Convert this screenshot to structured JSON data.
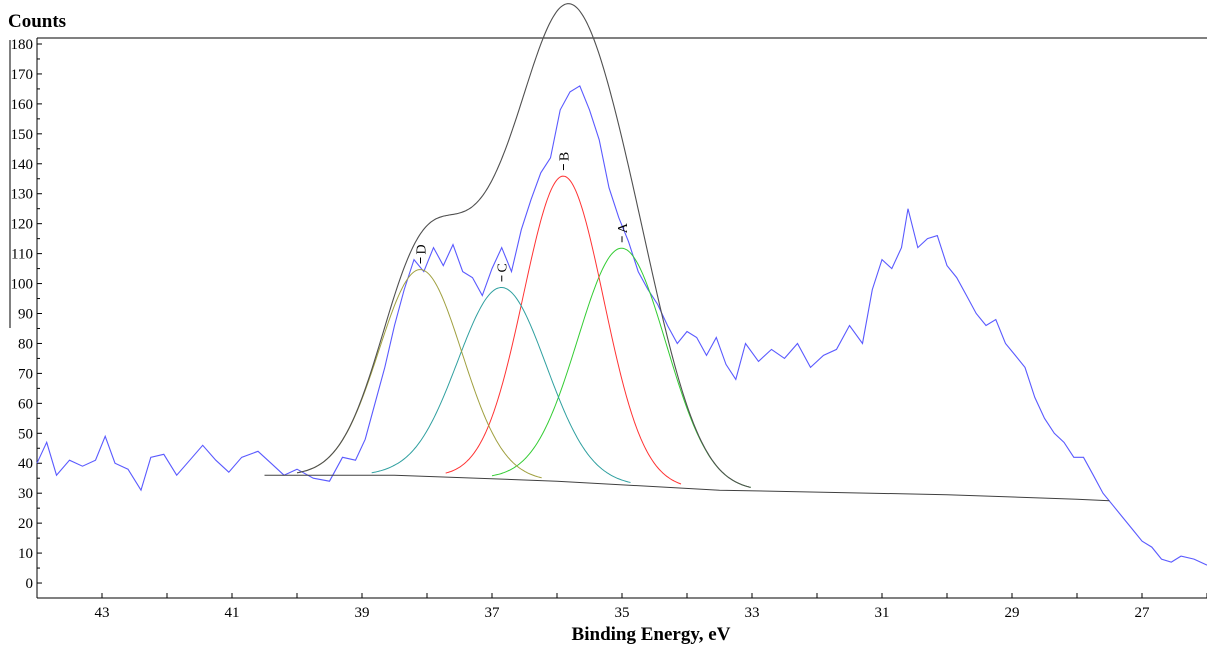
{
  "chart_data": {
    "type": "line",
    "ylabel": "Counts",
    "xlabel": "Binding Energy, eV",
    "xlim": [
      44,
      26
    ],
    "ylim": [
      -5,
      182
    ],
    "x_reversed": true,
    "grid": false,
    "x_ticks": [
      43,
      41,
      39,
      37,
      35,
      33,
      31,
      29,
      27
    ],
    "y_ticks": [
      0,
      10,
      20,
      30,
      40,
      50,
      60,
      70,
      80,
      90,
      100,
      110,
      120,
      130,
      140,
      150,
      160,
      170,
      180
    ],
    "raw_spectrum": {
      "color": "#5a5aff",
      "points": [
        [
          44.0,
          40
        ],
        [
          43.85,
          47
        ],
        [
          43.7,
          36
        ],
        [
          43.5,
          41
        ],
        [
          43.3,
          39
        ],
        [
          43.1,
          41
        ],
        [
          42.95,
          49
        ],
        [
          42.8,
          40
        ],
        [
          42.6,
          38
        ],
        [
          42.4,
          31
        ],
        [
          42.25,
          42
        ],
        [
          42.05,
          43
        ],
        [
          41.85,
          36
        ],
        [
          41.65,
          41
        ],
        [
          41.45,
          46
        ],
        [
          41.25,
          41
        ],
        [
          41.05,
          37
        ],
        [
          40.85,
          42
        ],
        [
          40.6,
          44
        ],
        [
          40.4,
          40
        ],
        [
          40.2,
          36
        ],
        [
          40.0,
          38
        ],
        [
          39.75,
          35
        ],
        [
          39.5,
          34
        ],
        [
          39.3,
          42
        ],
        [
          39.1,
          41
        ],
        [
          38.95,
          48
        ],
        [
          38.8,
          60
        ],
        [
          38.65,
          72
        ],
        [
          38.5,
          86
        ],
        [
          38.35,
          98
        ],
        [
          38.2,
          108
        ],
        [
          38.05,
          104
        ],
        [
          37.9,
          112
        ],
        [
          37.75,
          106
        ],
        [
          37.6,
          113
        ],
        [
          37.45,
          104
        ],
        [
          37.3,
          102
        ],
        [
          37.15,
          96
        ],
        [
          37.0,
          105
        ],
        [
          36.85,
          112
        ],
        [
          36.7,
          104
        ],
        [
          36.55,
          118
        ],
        [
          36.4,
          128
        ],
        [
          36.25,
          137
        ],
        [
          36.1,
          142
        ],
        [
          35.95,
          158
        ],
        [
          35.8,
          164
        ],
        [
          35.65,
          166
        ],
        [
          35.5,
          158
        ],
        [
          35.35,
          148
        ],
        [
          35.2,
          132
        ],
        [
          35.05,
          122
        ],
        [
          34.9,
          114
        ],
        [
          34.75,
          104
        ],
        [
          34.6,
          98
        ],
        [
          34.45,
          93
        ],
        [
          34.3,
          86
        ],
        [
          34.15,
          80
        ],
        [
          34.0,
          84
        ],
        [
          33.85,
          82
        ],
        [
          33.7,
          76
        ],
        [
          33.55,
          82
        ],
        [
          33.4,
          73
        ],
        [
          33.25,
          68
        ],
        [
          33.1,
          80
        ],
        [
          32.9,
          74
        ],
        [
          32.7,
          78
        ],
        [
          32.5,
          75
        ],
        [
          32.3,
          80
        ],
        [
          32.1,
          72
        ],
        [
          31.9,
          76
        ],
        [
          31.7,
          78
        ],
        [
          31.5,
          86
        ],
        [
          31.3,
          80
        ],
        [
          31.15,
          98
        ],
        [
          31.0,
          108
        ],
        [
          30.85,
          105
        ],
        [
          30.7,
          112
        ],
        [
          30.6,
          125
        ],
        [
          30.45,
          112
        ],
        [
          30.3,
          115
        ],
        [
          30.15,
          116
        ],
        [
          30.0,
          106
        ],
        [
          29.85,
          102
        ],
        [
          29.7,
          96
        ],
        [
          29.55,
          90
        ],
        [
          29.4,
          86
        ],
        [
          29.25,
          88
        ],
        [
          29.1,
          80
        ],
        [
          28.95,
          76
        ],
        [
          28.8,
          72
        ],
        [
          28.65,
          62
        ],
        [
          28.5,
          55
        ],
        [
          28.35,
          50
        ],
        [
          28.2,
          47
        ],
        [
          28.05,
          42
        ],
        [
          27.9,
          42
        ],
        [
          27.75,
          36
        ],
        [
          27.6,
          30
        ],
        [
          27.45,
          26
        ],
        [
          27.3,
          22
        ],
        [
          27.15,
          18
        ],
        [
          27.0,
          14
        ],
        [
          26.85,
          12
        ],
        [
          26.7,
          8
        ],
        [
          26.55,
          7
        ],
        [
          26.4,
          9
        ],
        [
          26.2,
          8
        ],
        [
          26.0,
          6
        ]
      ]
    },
    "background": {
      "color": "#404040",
      "points": [
        [
          40.5,
          36
        ],
        [
          38.5,
          36
        ],
        [
          36.0,
          34
        ],
        [
          33.5,
          31
        ],
        [
          30.0,
          29.5
        ],
        [
          28.0,
          28
        ],
        [
          27.5,
          27.5
        ]
      ]
    },
    "envelope_color": "#505050",
    "peaks": [
      {
        "label": "A",
        "center": 35.0,
        "height": 79,
        "fwhm": 1.6,
        "color": "#33cc33"
      },
      {
        "label": "B",
        "center": 35.9,
        "height": 102,
        "fwhm": 1.45,
        "color": "#ff3333"
      },
      {
        "label": "C",
        "center": 36.85,
        "height": 64,
        "fwhm": 1.6,
        "color": "#30a0a0"
      },
      {
        "label": "D",
        "center": 38.1,
        "height": 69,
        "fwhm": 1.5,
        "color": "#a0a040"
      }
    ]
  }
}
